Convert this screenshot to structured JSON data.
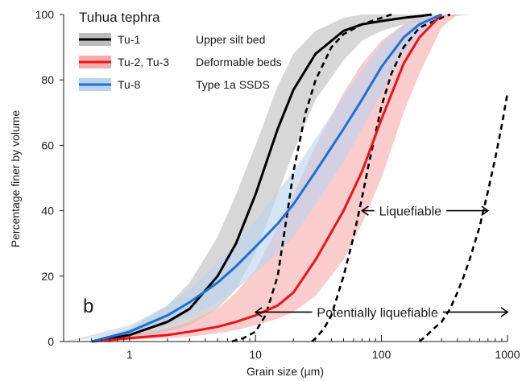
{
  "chart_data": {
    "type": "line",
    "xscale": "log",
    "xlim": [
      0.3,
      1000
    ],
    "ylim": [
      0,
      100
    ],
    "xlabel": "Grain size (µm)",
    "ylabel": "Percentage finer by volume",
    "x_ticks": [
      1,
      10,
      100,
      1000
    ],
    "x_tick_labels": [
      "1",
      "10",
      "100",
      "1000"
    ],
    "y_ticks": [
      0,
      20,
      40,
      60,
      80,
      100
    ],
    "y_tick_labels": [
      "0",
      "20",
      "40",
      "60",
      "80",
      "100"
    ],
    "grid": false,
    "panel_label": "b",
    "legend": {
      "title": "Tuhua tephra",
      "placement": "top-left",
      "entries": [
        {
          "label": "Tu-1",
          "description": "Upper silt bed",
          "color": "#000000",
          "band_color": "#bdbdbd"
        },
        {
          "label": "Tu-2, Tu-3",
          "description": "Deformable beds",
          "color": "#e8141c",
          "band_color": "#f7aaaa"
        },
        {
          "label": "Tu-8",
          "description": "Type 1a SSDS",
          "color": "#1f6fd1",
          "band_color": "#b9d4ef"
        }
      ]
    },
    "series": [
      {
        "name": "Tu-1",
        "color": "#000000",
        "x": [
          0.5,
          1,
          2,
          3,
          5,
          7,
          10,
          15,
          20,
          30,
          50,
          70,
          100,
          150,
          200,
          250
        ],
        "y": [
          0,
          2,
          6,
          10,
          20,
          30,
          45,
          65,
          77,
          88,
          95,
          97,
          98,
          99,
          99.5,
          100
        ]
      },
      {
        "name": "Tu-2, Tu-3",
        "color": "#e8141c",
        "x": [
          0.5,
          1,
          2,
          3,
          5,
          7,
          10,
          15,
          20,
          30,
          50,
          70,
          100,
          150,
          200,
          300
        ],
        "y": [
          0,
          1,
          2,
          3,
          4.5,
          6,
          8,
          11,
          15,
          25,
          40,
          52,
          68,
          85,
          93,
          100
        ]
      },
      {
        "name": "Tu-8",
        "color": "#1f6fd1",
        "x": [
          0.5,
          1,
          2,
          3,
          5,
          7,
          10,
          15,
          20,
          30,
          50,
          70,
          100,
          150,
          200,
          300
        ],
        "y": [
          0,
          3,
          8,
          12,
          18,
          23,
          29,
          36,
          42,
          52,
          65,
          74,
          84,
          93,
          97,
          100
        ]
      }
    ],
    "bands": [
      {
        "series": "Tu-1",
        "color": "#bdbdbd",
        "x": [
          0.5,
          1,
          2,
          3,
          5,
          7,
          10,
          15,
          20,
          30,
          50,
          70,
          100,
          150,
          200,
          300,
          500,
          700,
          1000
        ],
        "y_low": [
          0,
          1,
          3,
          5,
          10,
          16,
          27,
          45,
          58,
          74,
          86,
          92,
          95,
          97,
          98,
          99,
          100,
          100,
          100
        ],
        "y_high": [
          0,
          4,
          11,
          18,
          32,
          45,
          60,
          78,
          88,
          95,
          99,
          100,
          100,
          100,
          100,
          100,
          100,
          100,
          100
        ]
      },
      {
        "series": "Tu-2, Tu-3",
        "color": "#f7aaaa",
        "x": [
          0.5,
          1,
          2,
          3,
          5,
          7,
          10,
          15,
          20,
          30,
          50,
          70,
          100,
          150,
          200,
          300,
          400
        ],
        "y_low": [
          0,
          0.5,
          1,
          1.5,
          2.5,
          3.5,
          5,
          7,
          9,
          14,
          25,
          36,
          50,
          70,
          82,
          96,
          100
        ],
        "y_high": [
          0,
          2,
          4,
          6,
          10,
          15,
          22,
          35,
          45,
          60,
          76,
          85,
          92,
          97,
          99,
          100,
          100
        ]
      },
      {
        "series": "Tu-8",
        "color": "#b9d4ef",
        "x": [
          0.3,
          0.5,
          1,
          2,
          3,
          5,
          7,
          10,
          15,
          20,
          30,
          50,
          70,
          100,
          150,
          200,
          300
        ],
        "y_low": [
          0,
          1,
          2,
          5,
          8,
          12,
          16,
          21,
          27,
          32,
          42,
          55,
          65,
          76,
          88,
          94,
          100
        ],
        "y_high": [
          0,
          2,
          5,
          11,
          16,
          24,
          30,
          37,
          46,
          52,
          62,
          75,
          83,
          91,
          97,
          99,
          100
        ]
      }
    ],
    "boundary_curves": [
      {
        "name": "liquefiable-lower",
        "x": [
          6.5,
          8,
          10,
          12,
          15,
          18,
          20,
          25,
          30,
          40,
          50,
          70,
          100,
          120
        ],
        "y": [
          0,
          1,
          3,
          8,
          20,
          40,
          52,
          70,
          80,
          90,
          94,
          97,
          99,
          100
        ]
      },
      {
        "name": "liquefiable-upper",
        "x": [
          28,
          30,
          35,
          40,
          50,
          60,
          70,
          80,
          100,
          120,
          150,
          200,
          300,
          350
        ],
        "y": [
          0,
          1,
          4,
          8,
          20,
          32,
          44,
          55,
          72,
          82,
          90,
          96,
          99,
          100
        ]
      },
      {
        "name": "potentially-liquefiable-upper",
        "x": [
          200,
          230,
          260,
          300,
          350,
          400,
          450,
          500,
          600,
          700,
          800,
          900,
          1000
        ],
        "y": [
          0,
          2,
          4,
          6,
          10,
          15,
          20,
          25,
          35,
          46,
          56,
          66,
          76
        ]
      }
    ],
    "annotations": [
      {
        "text": "Liquefiable",
        "arrow_from": 70,
        "arrow_to": 700,
        "y": 40
      },
      {
        "text": "Potentially liquefiable",
        "arrow_from": 10,
        "arrow_to": 1000,
        "y": 9
      }
    ]
  }
}
